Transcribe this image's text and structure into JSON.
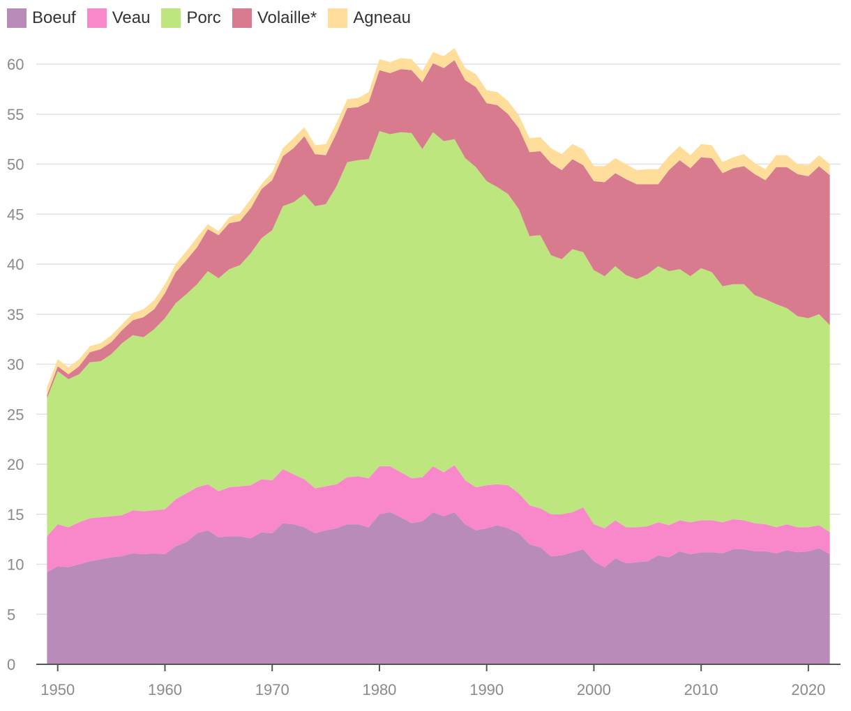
{
  "chart_data": {
    "type": "area",
    "stacked": true,
    "title": "",
    "xlabel": "",
    "ylabel": "",
    "xlim": [
      1948,
      2023
    ],
    "ylim": [
      0,
      62
    ],
    "yticks": [
      0,
      5,
      10,
      15,
      20,
      25,
      30,
      35,
      40,
      45,
      50,
      55,
      60
    ],
    "xticks": [
      1950,
      1960,
      1970,
      1980,
      1990,
      2000,
      2010,
      2020
    ],
    "grid": true,
    "legend_position": "top-left",
    "x": [
      1949,
      1950,
      1951,
      1952,
      1953,
      1954,
      1955,
      1956,
      1957,
      1958,
      1959,
      1960,
      1961,
      1962,
      1963,
      1964,
      1965,
      1966,
      1967,
      1968,
      1969,
      1970,
      1971,
      1972,
      1973,
      1974,
      1975,
      1976,
      1977,
      1978,
      1979,
      1980,
      1981,
      1982,
      1983,
      1984,
      1985,
      1986,
      1987,
      1988,
      1989,
      1990,
      1991,
      1992,
      1993,
      1994,
      1995,
      1996,
      1997,
      1998,
      1999,
      2000,
      2001,
      2002,
      2003,
      2004,
      2005,
      2006,
      2007,
      2008,
      2009,
      2010,
      2011,
      2012,
      2013,
      2014,
      2015,
      2016,
      2017,
      2018,
      2019,
      2020,
      2021,
      2022
    ],
    "series": [
      {
        "name": "Boeuf",
        "color": "#b98bb8",
        "values": [
          9.2,
          9.8,
          9.7,
          10.0,
          10.3,
          10.5,
          10.7,
          10.8,
          11.1,
          11.0,
          11.1,
          11.0,
          11.8,
          12.2,
          13.1,
          13.4,
          12.7,
          12.8,
          12.8,
          12.6,
          13.2,
          13.1,
          14.1,
          14.0,
          13.7,
          13.1,
          13.4,
          13.6,
          14.0,
          14.0,
          13.7,
          15.0,
          15.2,
          14.7,
          14.1,
          14.3,
          15.2,
          14.8,
          15.2,
          14.0,
          13.4,
          13.6,
          13.9,
          13.6,
          13.1,
          12.0,
          11.7,
          10.8,
          10.9,
          11.2,
          11.5,
          10.3,
          9.7,
          10.6,
          10.1,
          10.2,
          10.3,
          10.9,
          10.7,
          11.3,
          11.0,
          11.2,
          11.2,
          11.1,
          11.5,
          11.5,
          11.3,
          11.3,
          11.1,
          11.4,
          11.2,
          11.3,
          11.6,
          11.0
        ]
      },
      {
        "name": "Veau",
        "color": "#f888ca",
        "values": [
          3.6,
          4.2,
          4.0,
          4.2,
          4.3,
          4.2,
          4.1,
          4.1,
          4.3,
          4.3,
          4.3,
          4.5,
          4.7,
          4.9,
          4.6,
          4.6,
          4.6,
          4.9,
          5.0,
          5.3,
          5.3,
          5.3,
          5.4,
          5.0,
          4.8,
          4.5,
          4.4,
          4.4,
          4.7,
          4.8,
          4.9,
          4.8,
          4.6,
          4.5,
          4.5,
          4.4,
          4.6,
          4.4,
          4.7,
          4.4,
          4.3,
          4.3,
          4.1,
          4.3,
          4.0,
          3.9,
          3.9,
          4.2,
          4.1,
          4.0,
          4.2,
          3.7,
          3.9,
          3.8,
          3.6,
          3.5,
          3.5,
          3.3,
          3.2,
          3.1,
          3.2,
          3.2,
          3.2,
          3.1,
          3.0,
          2.9,
          2.8,
          2.7,
          2.6,
          2.6,
          2.5,
          2.4,
          2.3,
          2.2
        ]
      },
      {
        "name": "Porc",
        "color": "#bde77e",
        "values": [
          13.8,
          15.3,
          14.8,
          14.8,
          15.6,
          15.6,
          16.2,
          17.2,
          17.5,
          17.4,
          18.1,
          19.1,
          19.6,
          19.9,
          20.3,
          21.3,
          21.3,
          21.8,
          22.1,
          23.2,
          24.1,
          25.0,
          26.3,
          27.2,
          28.5,
          28.2,
          28.2,
          29.8,
          31.5,
          31.6,
          31.9,
          33.5,
          33.2,
          34.0,
          34.5,
          32.8,
          33.4,
          33.1,
          32.6,
          32.2,
          32.0,
          30.4,
          29.7,
          29.1,
          28.4,
          26.9,
          27.3,
          25.9,
          25.5,
          26.3,
          25.5,
          25.4,
          25.2,
          25.4,
          25.2,
          24.8,
          25.2,
          25.6,
          25.4,
          25.1,
          24.6,
          25.2,
          24.8,
          23.6,
          23.5,
          23.6,
          22.8,
          22.5,
          22.3,
          21.6,
          21.1,
          20.9,
          21.1,
          20.7
        ]
      },
      {
        "name": "Volaille*",
        "color": "#d97b8f",
        "values": [
          0.3,
          0.5,
          0.5,
          0.8,
          1.0,
          1.2,
          1.2,
          1.3,
          1.5,
          2.0,
          2.0,
          2.5,
          3.1,
          3.4,
          3.7,
          4.2,
          4.3,
          4.6,
          4.4,
          4.5,
          4.9,
          5.0,
          5.0,
          5.4,
          5.8,
          5.2,
          4.9,
          5.3,
          5.4,
          5.3,
          5.7,
          6.1,
          6.1,
          6.3,
          6.3,
          6.7,
          6.9,
          7.3,
          7.9,
          7.8,
          8.0,
          7.8,
          8.2,
          8.0,
          8.1,
          8.4,
          8.4,
          9.2,
          8.9,
          9.0,
          8.7,
          8.9,
          9.4,
          9.3,
          9.6,
          9.5,
          9.0,
          8.2,
          10.1,
          10.9,
          10.8,
          11.1,
          11.4,
          11.3,
          11.6,
          11.8,
          12.1,
          11.9,
          13.7,
          14.1,
          14.2,
          14.2,
          14.8,
          15.0
        ]
      },
      {
        "name": "Agneau",
        "color": "#fede9a",
        "values": [
          0.8,
          0.7,
          0.7,
          0.7,
          0.6,
          0.6,
          0.7,
          0.6,
          0.7,
          0.8,
          0.9,
          0.9,
          0.8,
          0.9,
          1.0,
          0.5,
          0.4,
          0.6,
          0.8,
          0.9,
          0.5,
          0.8,
          0.8,
          1.0,
          0.9,
          0.9,
          1.1,
          1.0,
          0.9,
          0.9,
          1.0,
          1.1,
          1.1,
          1.1,
          1.1,
          1.1,
          1.1,
          1.2,
          1.2,
          1.2,
          1.3,
          1.3,
          1.3,
          1.3,
          1.3,
          1.4,
          1.4,
          1.5,
          1.6,
          1.5,
          1.6,
          1.5,
          1.6,
          1.5,
          1.5,
          1.4,
          1.5,
          1.5,
          1.4,
          1.4,
          1.3,
          1.3,
          1.3,
          1.1,
          1.1,
          1.2,
          1.1,
          1.1,
          1.2,
          1.2,
          1.0,
          1.1,
          1.1,
          1.1
        ]
      }
    ]
  }
}
